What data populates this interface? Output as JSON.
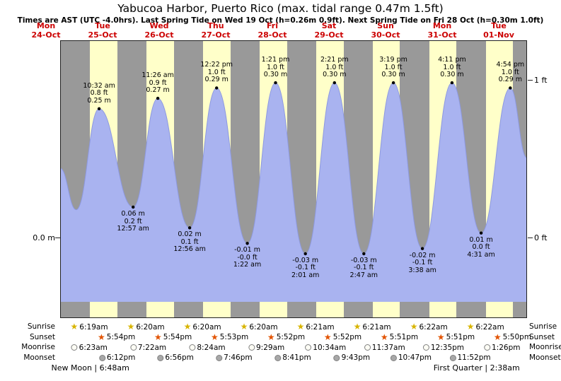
{
  "title": "Yabucoa Harbor, Puerto Rico (max. tidal range 0.47m 1.5ft)",
  "subtitle": "Times are AST (UTC -4.0hrs). Last Spring Tide on Wed 19 Oct (h=0.26m 0.9ft). Next Spring Tide on Fri 28 Oct (h=0.30m 1.0ft)",
  "axis": {
    "left_label": "0.0 m",
    "right_labels": [
      "1 ft",
      "0 ft"
    ]
  },
  "colors": {
    "day_band": "#ffffc9",
    "night_band": "#999999",
    "tide_fill": "#a9b3f0",
    "tide_edge": "#8d99e0",
    "day_label_red": "#cc0000",
    "sunrise_star": "#d8b400",
    "sunset_star": "#e25300",
    "moonrise_fill": "#fdfdf5",
    "moonset_fill": "#a8a8a8"
  },
  "days": [
    {
      "dow": "Mon",
      "date": "24-Oct"
    },
    {
      "dow": "Tue",
      "date": "25-Oct",
      "sunrise": "6:19am",
      "sunset": "5:54pm",
      "moonrise": "6:23am",
      "moonset": "6:12pm"
    },
    {
      "dow": "Wed",
      "date": "26-Oct",
      "sunrise": "6:20am",
      "sunset": "5:54pm",
      "moonrise": "7:22am",
      "moonset": "6:56pm"
    },
    {
      "dow": "Thu",
      "date": "27-Oct",
      "sunrise": "6:20am",
      "sunset": "5:53pm",
      "moonrise": "8:24am",
      "moonset": "7:46pm"
    },
    {
      "dow": "Fri",
      "date": "28-Oct",
      "sunrise": "6:20am",
      "sunset": "5:52pm",
      "moonrise": "9:29am",
      "moonset": "8:41pm"
    },
    {
      "dow": "Sat",
      "date": "29-Oct",
      "sunrise": "6:21am",
      "sunset": "5:52pm",
      "moonrise": "10:34am",
      "moonset": "9:43pm"
    },
    {
      "dow": "Sun",
      "date": "30-Oct",
      "sunrise": "6:21am",
      "sunset": "5:51pm",
      "moonrise": "11:37am",
      "moonset": "10:47pm"
    },
    {
      "dow": "Mon",
      "date": "31-Oct",
      "sunrise": "6:22am",
      "sunset": "5:51pm",
      "moonrise": "12:35pm",
      "moonset": "11:52pm"
    },
    {
      "dow": "Tue",
      "date": "01-Nov",
      "sunrise": "6:22am",
      "sunset": "5:50pm",
      "moonrise": "1:26pm"
    }
  ],
  "almanac_row_labels": [
    "Sunrise",
    "Sunset",
    "Moonrise",
    "Moonset"
  ],
  "phases": [
    {
      "label": "New Moon | 6:48am",
      "day_index": 1,
      "time": "6:48am"
    },
    {
      "label": "First Quarter | 2:38am",
      "day_index": 8,
      "time": "2:38am"
    }
  ],
  "chart_data": {
    "type": "area",
    "series_name": "Tide height",
    "x_window": "Mon 24-Oct 18:00 through Tue 01-Nov 24:00 (AST)",
    "ylim_m": [
      -0.12,
      0.38
    ],
    "y_reference_lines": [
      {
        "label": "0 ft",
        "m": 0.0
      },
      {
        "label": "1 ft",
        "m": 0.3048
      }
    ],
    "extremes": [
      {
        "kind": "high",
        "day_index": 1,
        "time": "10:32 am",
        "ft": "0.8 ft",
        "m": "0.25 m",
        "val": 0.25
      },
      {
        "kind": "low",
        "day_index": 2,
        "time": "12:57 am",
        "ft": "0.2 ft",
        "m": "0.06 m",
        "val": 0.06
      },
      {
        "kind": "high",
        "day_index": 2,
        "time": "11:26 am",
        "ft": "0.9 ft",
        "m": "0.27 m",
        "val": 0.27
      },
      {
        "kind": "low",
        "day_index": 3,
        "time": "12:56 am",
        "ft": "0.1 ft",
        "m": "0.02 m",
        "val": 0.02
      },
      {
        "kind": "high",
        "day_index": 3,
        "time": "12:22 pm",
        "ft": "1.0 ft",
        "m": "0.29 m",
        "val": 0.29
      },
      {
        "kind": "low",
        "day_index": 4,
        "time": "1:22 am",
        "ft": "-0.0 ft",
        "m": "-0.01 m",
        "val": -0.01
      },
      {
        "kind": "high",
        "day_index": 4,
        "time": "1:21 pm",
        "ft": "1.0 ft",
        "m": "0.30 m",
        "val": 0.3
      },
      {
        "kind": "low",
        "day_index": 5,
        "time": "2:01 am",
        "ft": "-0.1 ft",
        "m": "-0.03 m",
        "val": -0.03
      },
      {
        "kind": "high",
        "day_index": 5,
        "time": "2:21 pm",
        "ft": "1.0 ft",
        "m": "0.30 m",
        "val": 0.3
      },
      {
        "kind": "low",
        "day_index": 6,
        "time": "2:47 am",
        "ft": "-0.1 ft",
        "m": "-0.03 m",
        "val": -0.03
      },
      {
        "kind": "high",
        "day_index": 6,
        "time": "3:19 pm",
        "ft": "1.0 ft",
        "m": "0.30 m",
        "val": 0.3
      },
      {
        "kind": "low",
        "day_index": 7,
        "time": "3:38 am",
        "ft": "-0.1 ft",
        "m": "-0.02 m",
        "val": -0.02
      },
      {
        "kind": "high",
        "day_index": 7,
        "time": "4:11 pm",
        "ft": "1.0 ft",
        "m": "0.30 m",
        "val": 0.3
      },
      {
        "kind": "low",
        "day_index": 8,
        "time": "4:31 am",
        "ft": "0.0 ft",
        "m": "0.01 m",
        "val": 0.01
      },
      {
        "kind": "high",
        "day_index": 8,
        "time": "4:54 pm",
        "ft": "1.0 ft",
        "m": "0.29 m",
        "val": 0.29
      }
    ],
    "edge_points": [
      {
        "day_index": 0,
        "time": "6:00 pm",
        "val": 0.135
      },
      {
        "day_index": 1,
        "time": "12:48 am",
        "val": 0.055
      },
      {
        "day_index": 8,
        "time": "11:59 pm",
        "val": 0.155
      }
    ]
  }
}
